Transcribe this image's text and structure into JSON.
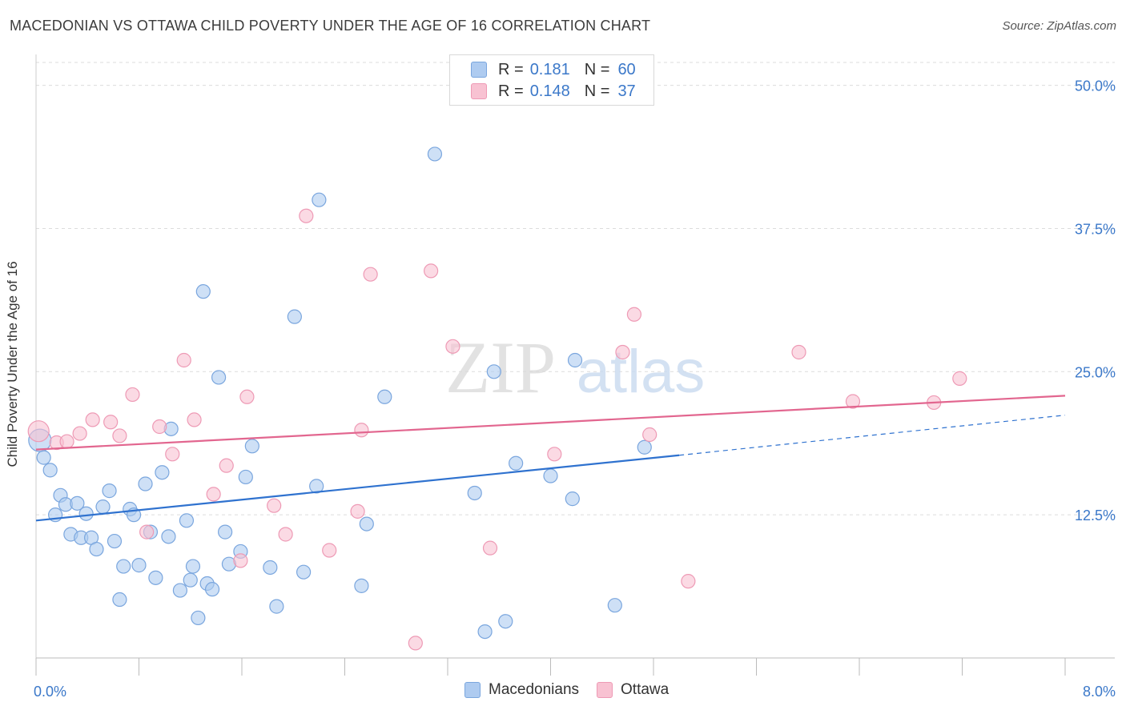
{
  "header": {
    "title": "MACEDONIAN VS OTTAWA CHILD POVERTY UNDER THE AGE OF 16 CORRELATION CHART",
    "source": "Source: ZipAtlas.com"
  },
  "watermark": {
    "zip": "ZIP",
    "atlas": "atlas"
  },
  "legend": {
    "rows": [
      {
        "r_label": "R =",
        "r_value": "0.181",
        "n_label": "N =",
        "n_value": "60",
        "color": "#aecbf0"
      },
      {
        "r_label": "R =",
        "r_value": "0.148",
        "n_label": "N =",
        "n_value": "37",
        "color": "#f8c2d2"
      }
    ]
  },
  "bottom_legend": {
    "items": [
      {
        "label": "Macedonians",
        "color": "#aecbf0"
      },
      {
        "label": "Ottawa",
        "color": "#f8c2d2"
      }
    ]
  },
  "colors": {
    "blue_fill": "#aecbf0",
    "blue_stroke": "#7aa6de",
    "blue_line": "#2f72cf",
    "pink_fill": "#f8c2d2",
    "pink_stroke": "#ee9ab5",
    "pink_line": "#e2668f",
    "tick_text": "#3b78c9",
    "grid": "#dcdcdc"
  },
  "chart_data": {
    "type": "scatter",
    "ylabel": "Child Poverty Under the Age of 16",
    "xlim": [
      0,
      8.0
    ],
    "ylim": [
      0,
      52
    ],
    "x_tick_labels": [
      {
        "value": 0,
        "label": "0.0%"
      },
      {
        "value": 8.0,
        "label": "8.0%"
      }
    ],
    "y_ticks": [
      {
        "value": 12.5,
        "label": "12.5%"
      },
      {
        "value": 25.0,
        "label": "25.0%"
      },
      {
        "value": 37.5,
        "label": "37.5%"
      },
      {
        "value": 50.0,
        "label": "50.0%"
      }
    ],
    "grid": true,
    "legend_position": "top-center",
    "series": [
      {
        "name": "Macedonians",
        "points": [
          [
            0.03,
            19.0
          ],
          [
            0.06,
            17.5
          ],
          [
            0.11,
            16.4
          ],
          [
            0.15,
            12.5
          ],
          [
            0.19,
            14.2
          ],
          [
            0.23,
            13.4
          ],
          [
            0.27,
            10.8
          ],
          [
            0.32,
            13.5
          ],
          [
            0.35,
            10.5
          ],
          [
            0.39,
            12.6
          ],
          [
            0.43,
            10.5
          ],
          [
            0.47,
            9.5
          ],
          [
            0.52,
            13.2
          ],
          [
            0.57,
            14.6
          ],
          [
            0.61,
            10.2
          ],
          [
            0.65,
            5.1
          ],
          [
            0.68,
            8.0
          ],
          [
            0.73,
            13.0
          ],
          [
            0.76,
            12.5
          ],
          [
            0.8,
            8.1
          ],
          [
            0.85,
            15.2
          ],
          [
            0.89,
            11.0
          ],
          [
            0.93,
            7.0
          ],
          [
            0.98,
            16.2
          ],
          [
            1.03,
            10.6
          ],
          [
            1.05,
            20.0
          ],
          [
            1.12,
            5.9
          ],
          [
            1.17,
            12.0
          ],
          [
            1.2,
            6.8
          ],
          [
            1.22,
            8.0
          ],
          [
            1.26,
            3.5
          ],
          [
            1.3,
            32.0
          ],
          [
            1.33,
            6.5
          ],
          [
            1.37,
            6.0
          ],
          [
            1.42,
            24.5
          ],
          [
            1.47,
            11.0
          ],
          [
            1.5,
            8.2
          ],
          [
            1.59,
            9.3
          ],
          [
            1.63,
            15.8
          ],
          [
            1.68,
            18.5
          ],
          [
            1.82,
            7.9
          ],
          [
            1.87,
            4.5
          ],
          [
            2.01,
            29.8
          ],
          [
            2.08,
            7.5
          ],
          [
            2.18,
            15.0
          ],
          [
            2.2,
            40.0
          ],
          [
            2.53,
            6.3
          ],
          [
            2.57,
            11.7
          ],
          [
            2.71,
            22.8
          ],
          [
            3.1,
            44.0
          ],
          [
            3.41,
            14.4
          ],
          [
            3.49,
            2.3
          ],
          [
            3.56,
            25.0
          ],
          [
            3.65,
            3.2
          ],
          [
            3.73,
            17.0
          ],
          [
            4.0,
            15.9
          ],
          [
            4.17,
            13.9
          ],
          [
            4.19,
            26.0
          ],
          [
            4.5,
            4.6
          ],
          [
            4.73,
            18.4
          ]
        ]
      },
      {
        "name": "Ottawa",
        "points": [
          [
            0.02,
            19.8
          ],
          [
            0.16,
            18.8
          ],
          [
            0.24,
            18.9
          ],
          [
            0.34,
            19.6
          ],
          [
            0.44,
            20.8
          ],
          [
            0.58,
            20.6
          ],
          [
            0.65,
            19.4
          ],
          [
            0.75,
            23.0
          ],
          [
            0.86,
            11.0
          ],
          [
            0.96,
            20.2
          ],
          [
            1.06,
            17.8
          ],
          [
            1.15,
            26.0
          ],
          [
            1.23,
            20.8
          ],
          [
            1.38,
            14.3
          ],
          [
            1.48,
            16.8
          ],
          [
            1.59,
            8.5
          ],
          [
            1.64,
            22.8
          ],
          [
            1.85,
            13.3
          ],
          [
            1.94,
            10.8
          ],
          [
            2.1,
            38.6
          ],
          [
            2.28,
            9.4
          ],
          [
            2.5,
            12.8
          ],
          [
            2.53,
            19.9
          ],
          [
            2.6,
            33.5
          ],
          [
            2.95,
            1.3
          ],
          [
            3.07,
            33.8
          ],
          [
            3.24,
            27.2
          ],
          [
            3.53,
            9.6
          ],
          [
            4.03,
            17.8
          ],
          [
            4.56,
            26.7
          ],
          [
            4.65,
            30.0
          ],
          [
            4.77,
            19.5
          ],
          [
            5.07,
            6.7
          ],
          [
            5.93,
            26.7
          ],
          [
            6.35,
            22.4
          ],
          [
            6.98,
            22.3
          ],
          [
            7.18,
            24.4
          ]
        ]
      }
    ],
    "trendlines": [
      {
        "series": "Macedonians",
        "x": [
          0,
          5.0
        ],
        "y": [
          12.0,
          17.7
        ],
        "extension_x": [
          5.0,
          8.0
        ],
        "extension_y": [
          17.7,
          21.2
        ]
      },
      {
        "series": "Ottawa",
        "x": [
          0,
          8.0
        ],
        "y": [
          18.2,
          22.9
        ]
      }
    ]
  }
}
